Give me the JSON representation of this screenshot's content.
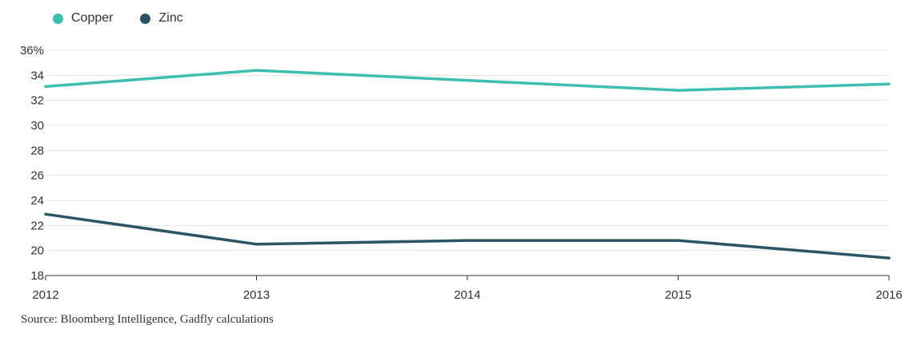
{
  "chart_data": {
    "type": "line",
    "x": [
      "2012",
      "2013",
      "2014",
      "2015",
      "2016"
    ],
    "series": [
      {
        "name": "Copper",
        "color": "#3cbfae",
        "values": [
          33.1,
          34.4,
          33.6,
          32.8,
          33.3
        ]
      },
      {
        "name": "Zinc",
        "color": "#2b5564",
        "values": [
          22.9,
          20.5,
          20.8,
          20.8,
          19.4
        ]
      }
    ],
    "ylim": [
      18,
      36
    ],
    "yticks": [
      "18",
      "20",
      "22",
      "24",
      "26",
      "28",
      "30",
      "32",
      "34",
      "36%"
    ],
    "ytick_values": [
      18,
      20,
      22,
      24,
      26,
      28,
      30,
      32,
      34,
      36
    ],
    "grid": true,
    "legend": "top-left"
  },
  "source": "Source: Bloomberg Intelligence, Gadfly calculations"
}
